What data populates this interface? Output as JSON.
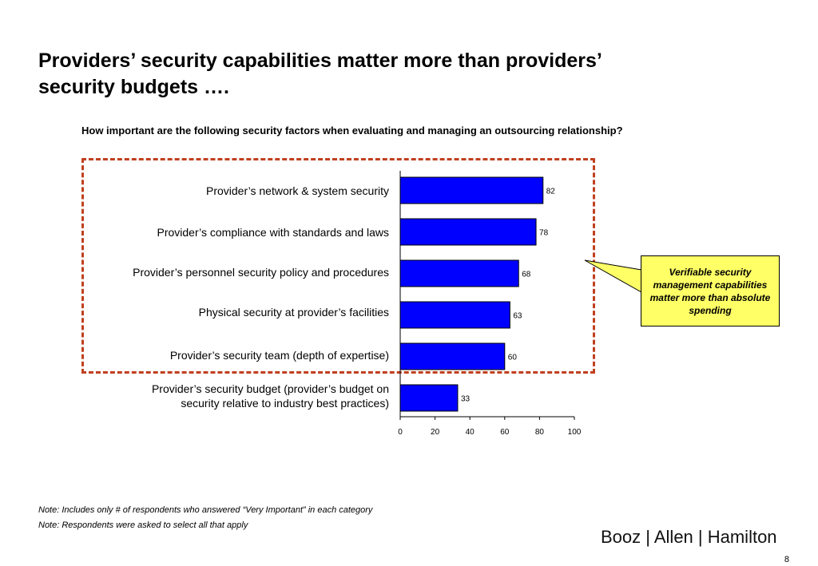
{
  "slide": {
    "title_line1": "Providers’ security capabilities matter more than providers’",
    "title_line2": "security budgets ….",
    "question": "How important are the following security factors when evaluating and managing an outsourcing relationship?",
    "callout": "Verifiable security management capabilities matter more than absolute spending",
    "note1": "Note:  Includes only # of respondents who answered “Very Important” in each category",
    "note2": "Note:  Respondents were asked to select all that apply",
    "logo": "Booz | Allen | Hamilton",
    "page_number": "8"
  },
  "chart_data": {
    "type": "bar",
    "orientation": "horizontal",
    "categories": [
      "Provider’s network & system security",
      "Provider’s compliance with standards and laws",
      "Provider’s personnel security policy and procedures",
      "Physical security at provider’s facilities",
      "Provider’s security team (depth of expertise)",
      "Provider’s security budget (provider’s budget on security relative to industry best practices)"
    ],
    "values": [
      82,
      78,
      68,
      63,
      60,
      33
    ],
    "xlim": [
      0,
      100
    ],
    "xticks": [
      0,
      20,
      40,
      60,
      80,
      100
    ],
    "bar_color": "#0000ff",
    "grid": false,
    "legend": "none"
  }
}
